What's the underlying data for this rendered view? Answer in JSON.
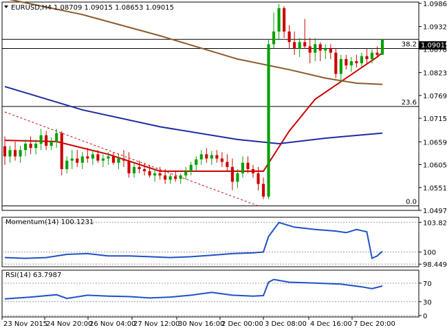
{
  "chart_data": [
    {
      "type": "candlestick",
      "title": "EURUSD,H4",
      "ohlc_header": "1.08709 1.09015 1.08653 1.09015",
      "current_price": "1.09015",
      "ylim": [
        1.04975,
        1.0988
      ],
      "yticks": [
        "1.09865",
        "1.09320",
        "1.08785",
        "1.08230",
        "1.07690",
        "1.07150",
        "1.06595",
        "1.06055",
        "1.05515",
        "1.04975"
      ],
      "candle_colors": {
        "up": "#00a000",
        "down": "#cc0000"
      },
      "candles": [
        [
          1.0649,
          1.0672,
          1.0605,
          1.0625
        ],
        [
          1.0625,
          1.065,
          1.061,
          1.064
        ],
        [
          1.064,
          1.066,
          1.0615,
          1.0625
        ],
        [
          1.0625,
          1.065,
          1.061,
          1.064
        ],
        [
          1.064,
          1.0665,
          1.0625,
          1.0655
        ],
        [
          1.0655,
          1.0672,
          1.063,
          1.0645
        ],
        [
          1.0645,
          1.0665,
          1.063,
          1.0655
        ],
        [
          1.0655,
          1.069,
          1.064,
          1.0675
        ],
        [
          1.0675,
          1.0685,
          1.064,
          1.065
        ],
        [
          1.065,
          1.067,
          1.064,
          1.066
        ],
        [
          1.066,
          1.069,
          1.0645,
          1.068
        ],
        [
          1.068,
          1.0685,
          1.058,
          1.0595
        ],
        [
          1.0595,
          1.0625,
          1.0585,
          1.0615
        ],
        [
          1.0615,
          1.064,
          1.0595,
          1.062
        ],
        [
          1.062,
          1.064,
          1.06,
          1.061
        ],
        [
          1.061,
          1.0635,
          1.0595,
          1.0625
        ],
        [
          1.0625,
          1.0645,
          1.061,
          1.062
        ],
        [
          1.062,
          1.064,
          1.0605,
          1.063
        ],
        [
          1.063,
          1.064,
          1.061,
          1.0615
        ],
        [
          1.0615,
          1.063,
          1.06,
          1.062
        ],
        [
          1.062,
          1.0635,
          1.0605,
          1.0625
        ],
        [
          1.0625,
          1.0635,
          1.0605,
          1.061
        ],
        [
          1.061,
          1.063,
          1.0595,
          1.062
        ],
        [
          1.062,
          1.064,
          1.06,
          1.0615
        ],
        [
          1.0615,
          1.0635,
          1.0575,
          1.0585
        ],
        [
          1.0585,
          1.061,
          1.0575,
          1.06
        ],
        [
          1.06,
          1.0615,
          1.0585,
          1.0595
        ],
        [
          1.0595,
          1.061,
          1.058,
          1.059
        ],
        [
          1.059,
          1.0605,
          1.0575,
          1.058
        ],
        [
          1.058,
          1.0595,
          1.0565,
          1.0585
        ],
        [
          1.0585,
          1.06,
          1.057,
          1.058
        ],
        [
          1.058,
          1.0595,
          1.056,
          1.057
        ],
        [
          1.057,
          1.0585,
          1.056,
          1.0578
        ],
        [
          1.0578,
          1.059,
          1.0565,
          1.0572
        ],
        [
          1.0572,
          1.0585,
          1.056,
          1.058
        ],
        [
          1.058,
          1.06,
          1.057,
          1.059
        ],
        [
          1.059,
          1.0612,
          1.058,
          1.0605
        ],
        [
          1.0605,
          1.0625,
          1.059,
          1.0618
        ],
        [
          1.0618,
          1.064,
          1.0605,
          1.063
        ],
        [
          1.063,
          1.0645,
          1.061,
          1.062
        ],
        [
          1.062,
          1.0638,
          1.0605,
          1.0628
        ],
        [
          1.0628,
          1.064,
          1.061,
          1.062
        ],
        [
          1.062,
          1.0635,
          1.06,
          1.0612
        ],
        [
          1.0612,
          1.063,
          1.059,
          1.06
        ],
        [
          1.06,
          1.062,
          1.0545,
          1.0565
        ],
        [
          1.0565,
          1.0595,
          1.055,
          1.0585
        ],
        [
          1.0585,
          1.0625,
          1.0575,
          1.061
        ],
        [
          1.061,
          1.0625,
          1.0585,
          1.0595
        ],
        [
          1.0595,
          1.0605,
          1.0575,
          1.0585
        ],
        [
          1.0585,
          1.06,
          1.0545,
          1.056
        ],
        [
          1.056,
          1.0575,
          1.0524,
          1.053
        ],
        [
          1.053,
          1.09,
          1.0524,
          1.089
        ],
        [
          1.089,
          1.0965,
          1.088,
          1.092
        ],
        [
          1.092,
          1.0985,
          1.09,
          1.0975
        ],
        [
          1.0975,
          1.098,
          1.0905,
          1.092
        ],
        [
          1.092,
          1.0935,
          1.088,
          1.0895
        ],
        [
          1.0895,
          1.092,
          1.0865,
          1.088
        ],
        [
          1.088,
          1.0905,
          1.086,
          1.0895
        ],
        [
          1.0895,
          1.095,
          1.088,
          1.0885
        ],
        [
          1.0885,
          1.0905,
          1.0845,
          1.087
        ],
        [
          1.087,
          1.0905,
          1.085,
          1.089
        ],
        [
          1.089,
          1.0895,
          1.085,
          1.0875
        ],
        [
          1.0875,
          1.089,
          1.0855,
          1.088
        ],
        [
          1.088,
          1.089,
          1.0855,
          1.087
        ],
        [
          1.087,
          1.088,
          1.081,
          1.082
        ],
        [
          1.082,
          1.0865,
          1.08,
          1.0855
        ],
        [
          1.0855,
          1.0865,
          1.083,
          1.084
        ],
        [
          1.084,
          1.086,
          1.0825,
          1.085
        ],
        [
          1.085,
          1.0865,
          1.0835,
          1.0845
        ],
        [
          1.0845,
          1.087,
          1.0835,
          1.0862
        ],
        [
          1.0862,
          1.088,
          1.0845,
          1.0855
        ],
        [
          1.0855,
          1.0878,
          1.0845,
          1.087
        ],
        [
          1.087,
          1.0885,
          1.0858,
          1.0865
        ],
        [
          1.0865,
          1.09015,
          1.08653,
          1.09015
        ]
      ],
      "moving_averages": [
        {
          "color": "#cc0000",
          "values": [
            [
              0,
              1.0663
            ],
            [
              10,
              1.066
            ],
            [
              20,
              1.063
            ],
            [
              30,
              1.059
            ],
            [
              40,
              1.059
            ],
            [
              50,
              1.059
            ],
            [
              55,
              1.0685
            ],
            [
              60,
              1.076
            ],
            [
              66,
              1.081
            ],
            [
              72,
              1.086
            ],
            [
              73,
              1.087
            ]
          ]
        },
        {
          "color": "#8b5a2b",
          "values": [
            [
              0,
              1.0998
            ],
            [
              15,
              1.096
            ],
            [
              30,
              1.091
            ],
            [
              45,
              1.0855
            ],
            [
              55,
              1.083
            ],
            [
              62,
              1.081
            ],
            [
              68,
              1.0798
            ],
            [
              73,
              1.0795
            ]
          ]
        },
        {
          "color": "#1e2ba0",
          "values": [
            [
              0,
              1.079
            ],
            [
              15,
              1.0735
            ],
            [
              30,
              1.0695
            ],
            [
              45,
              1.0665
            ],
            [
              53,
              1.0655
            ],
            [
              62,
              1.0668
            ],
            [
              73,
              1.068
            ]
          ]
        }
      ],
      "fibonacci": [
        {
          "label": "38.2",
          "value": 1.088
        },
        {
          "label": "23.6",
          "value": 1.0743
        },
        {
          "label": "0.0",
          "value": 1.0508
        }
      ],
      "trendline": {
        "color": "#cc0000",
        "from": [
          0,
          1.073
        ],
        "to": [
          49,
          1.0508
        ]
      }
    },
    {
      "type": "line",
      "title": "Momentum(14) 100.1231",
      "ylim": [
        98.2,
        104.3
      ],
      "yticks": [
        "103.8215",
        "100",
        "98.4494"
      ],
      "series": [
        {
          "color": "#1e50c8",
          "values": [
            [
              0,
              99.3
            ],
            [
              4,
              99.2
            ],
            [
              8,
              99.3
            ],
            [
              12,
              99.7
            ],
            [
              16,
              99.8
            ],
            [
              20,
              99.5
            ],
            [
              24,
              99.5
            ],
            [
              28,
              99.4
            ],
            [
              32,
              99.3
            ],
            [
              36,
              99.4
            ],
            [
              40,
              99.6
            ],
            [
              44,
              99.8
            ],
            [
              48,
              99.9
            ],
            [
              50,
              100.0
            ],
            [
              51,
              102.0
            ],
            [
              53,
              103.8
            ],
            [
              56,
              103.2
            ],
            [
              60,
              102.9
            ],
            [
              64,
              102.7
            ],
            [
              66,
              102.5
            ],
            [
              68,
              102.9
            ],
            [
              70,
              102.6
            ],
            [
              71,
              99.2
            ],
            [
              72,
              99.5
            ],
            [
              73,
              100.1
            ]
          ]
        }
      ]
    },
    {
      "type": "line",
      "title": "RSI(14) 63.7987",
      "ylim": [
        0,
        95
      ],
      "yticks": [
        "70",
        "30",
        "0"
      ],
      "series": [
        {
          "color": "#1e50c8",
          "values": [
            [
              0,
              36
            ],
            [
              5,
              40
            ],
            [
              10,
              45
            ],
            [
              12,
              37
            ],
            [
              16,
              44
            ],
            [
              20,
              42
            ],
            [
              24,
              41
            ],
            [
              28,
              38
            ],
            [
              32,
              40
            ],
            [
              36,
              44
            ],
            [
              40,
              50
            ],
            [
              44,
              44
            ],
            [
              48,
              42
            ],
            [
              50,
              43
            ],
            [
              51,
              72
            ],
            [
              52,
              78
            ],
            [
              55,
              72
            ],
            [
              60,
              70
            ],
            [
              65,
              68
            ],
            [
              69,
              62
            ],
            [
              71,
              58
            ],
            [
              73,
              63.8
            ]
          ]
        }
      ]
    }
  ],
  "x_labels": [
    "23 Nov 2015",
    "24 Nov 20:00",
    "26 Nov 04:00",
    "27 Nov 12:00",
    "30 Nov 16:00",
    "2 Dec 00:00",
    "3 Dec 08:00",
    "4 Dec 16:00",
    "7 Dec 20:00"
  ]
}
